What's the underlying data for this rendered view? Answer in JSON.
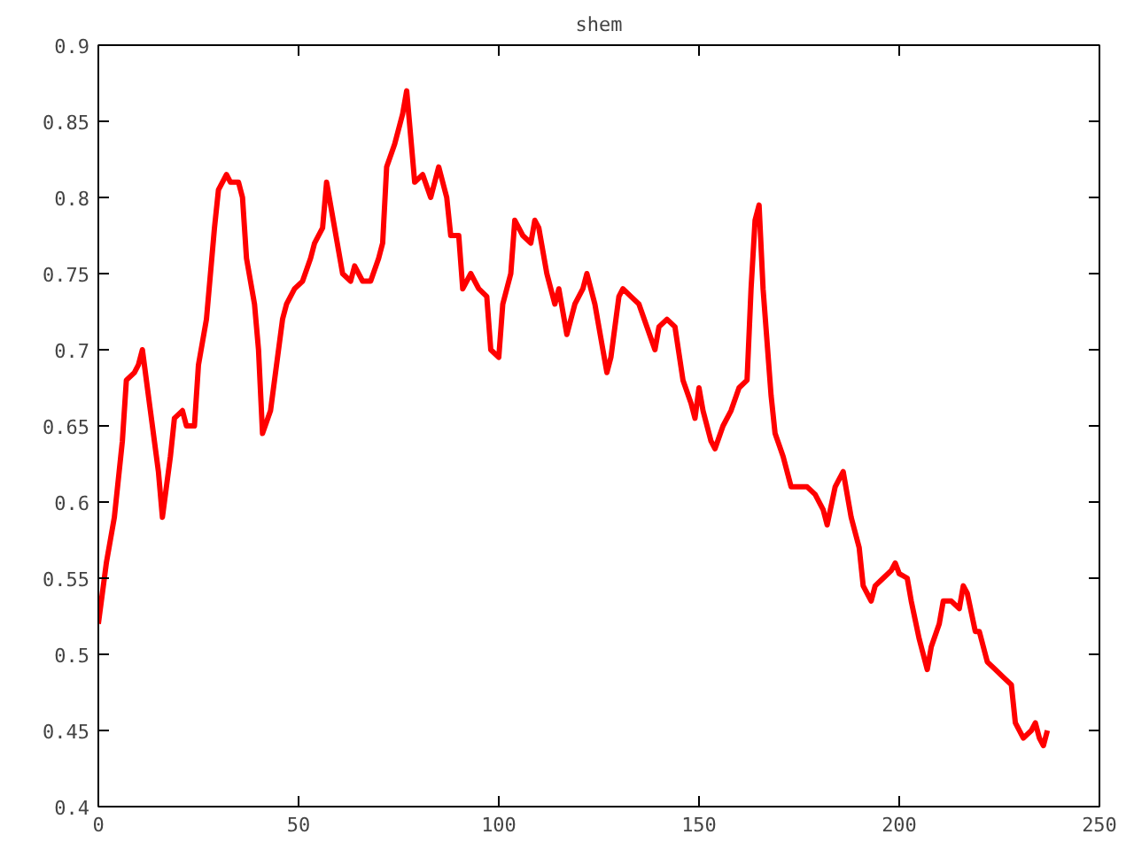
{
  "chart_data": {
    "type": "line",
    "title": "shem",
    "x": [
      0,
      2,
      4,
      6,
      7,
      9,
      10,
      11,
      13,
      15,
      16,
      18,
      19,
      21,
      22,
      24,
      25,
      27,
      29,
      30,
      32,
      33,
      35,
      36,
      37,
      39,
      40,
      41,
      43,
      44,
      46,
      47,
      49,
      51,
      53,
      54,
      56,
      57,
      59,
      61,
      63,
      64,
      66,
      68,
      70,
      71,
      72,
      74,
      76,
      77,
      79,
      81,
      83,
      85,
      87,
      88,
      90,
      91,
      93,
      95,
      97,
      98,
      100,
      101,
      103,
      104,
      106,
      108,
      109,
      110,
      112,
      114,
      115,
      117,
      119,
      121,
      122,
      124,
      126,
      127,
      128,
      130,
      131,
      133,
      135,
      137,
      139,
      140,
      142,
      144,
      146,
      148,
      149,
      150,
      151,
      153,
      154,
      156,
      158,
      160,
      162,
      163,
      164,
      165,
      166,
      168,
      169,
      171,
      173,
      175,
      177,
      179,
      181,
      182,
      184,
      186,
      188,
      190,
      191,
      193,
      194,
      196,
      198,
      199,
      200,
      202,
      203,
      205,
      207,
      208,
      210,
      211,
      213,
      215,
      216,
      217,
      219,
      220,
      222,
      224,
      226,
      228,
      229,
      231,
      233,
      234,
      235,
      236,
      237
    ],
    "series": [
      {
        "color": "#ff0000",
        "values": [
          0.52,
          0.56,
          0.59,
          0.64,
          0.68,
          0.685,
          0.69,
          0.7,
          0.66,
          0.62,
          0.59,
          0.63,
          0.655,
          0.66,
          0.65,
          0.65,
          0.69,
          0.72,
          0.78,
          0.805,
          0.815,
          0.81,
          0.81,
          0.8,
          0.76,
          0.73,
          0.7,
          0.645,
          0.66,
          0.68,
          0.72,
          0.73,
          0.74,
          0.745,
          0.76,
          0.77,
          0.78,
          0.81,
          0.78,
          0.75,
          0.745,
          0.755,
          0.745,
          0.745,
          0.76,
          0.77,
          0.82,
          0.835,
          0.855,
          0.87,
          0.81,
          0.815,
          0.8,
          0.82,
          0.8,
          0.775,
          0.775,
          0.74,
          0.75,
          0.74,
          0.735,
          0.7,
          0.695,
          0.73,
          0.75,
          0.785,
          0.775,
          0.77,
          0.785,
          0.78,
          0.75,
          0.73,
          0.74,
          0.71,
          0.73,
          0.74,
          0.75,
          0.73,
          0.7,
          0.685,
          0.695,
          0.735,
          0.74,
          0.735,
          0.73,
          0.715,
          0.7,
          0.715,
          0.72,
          0.715,
          0.68,
          0.665,
          0.655,
          0.675,
          0.66,
          0.64,
          0.635,
          0.65,
          0.66,
          0.675,
          0.68,
          0.74,
          0.785,
          0.795,
          0.74,
          0.67,
          0.645,
          0.63,
          0.61,
          0.61,
          0.61,
          0.605,
          0.595,
          0.585,
          0.61,
          0.62,
          0.59,
          0.57,
          0.545,
          0.535,
          0.545,
          0.55,
          0.555,
          0.56,
          0.553,
          0.55,
          0.535,
          0.51,
          0.49,
          0.505,
          0.52,
          0.535,
          0.535,
          0.53,
          0.545,
          0.54,
          0.515,
          0.515,
          0.495,
          0.49,
          0.485,
          0.48,
          0.455,
          0.445,
          0.45,
          0.455,
          0.445,
          0.44,
          0.45
        ]
      }
    ],
    "xlim": [
      0,
      250
    ],
    "xticks": [
      0,
      50,
      100,
      150,
      200,
      250
    ],
    "ylim": [
      0.4,
      0.9
    ],
    "yticks": [
      {
        "value": 0.4,
        "label": "0.4"
      },
      {
        "value": 0.45,
        "label": "0.45"
      },
      {
        "value": 0.5,
        "label": "0.5"
      },
      {
        "value": 0.55,
        "label": "0.55"
      },
      {
        "value": 0.6,
        "label": "0.6"
      },
      {
        "value": 0.65,
        "label": "0.65"
      },
      {
        "value": 0.7,
        "label": "0.7"
      },
      {
        "value": 0.75,
        "label": "0.75"
      },
      {
        "value": 0.8,
        "label": "0.8"
      },
      {
        "value": 0.85,
        "label": "0.85"
      },
      {
        "value": 0.9,
        "label": "0.9"
      }
    ],
    "marker": "none"
  }
}
